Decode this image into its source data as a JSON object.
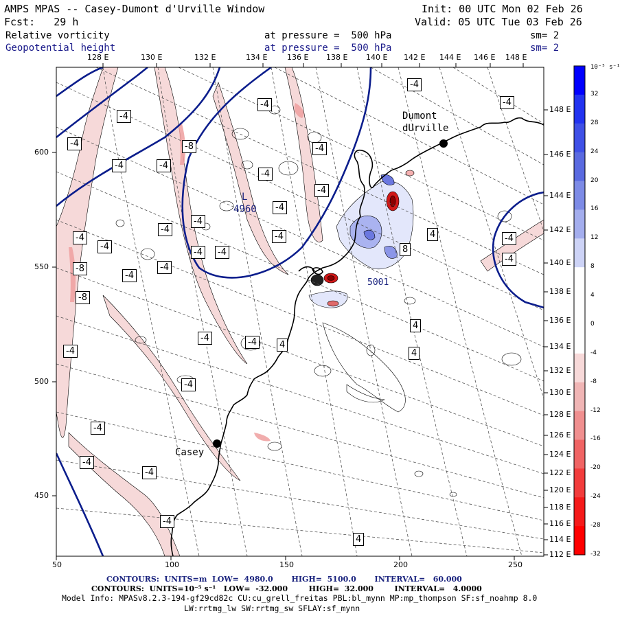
{
  "header": {
    "title": "AMPS MPAS -- Casey-Dumont d'Urville Window",
    "init": "Init: 00 UTC Mon 02 Feb 26",
    "forecast": "Fcst:   29 h",
    "valid": "Valid: 05 UTC Tue 03 Feb 26",
    "field1_name": "Relative vorticity",
    "field1_level": "at pressure =  500 hPa",
    "field1_smooth": "sm= 2",
    "field2_name": "Geopotential height",
    "field2_level": "at pressure =  500 hPa",
    "field2_smooth": "sm= 2"
  },
  "longitude_labels_top": [
    "128 E",
    "130 E",
    "132 E",
    "134 E",
    "136 E",
    "138 E",
    "140 E",
    "142 E",
    "144 E",
    "146 E",
    "148 E"
  ],
  "longitude_labels_right": [
    "148 E",
    "146 E",
    "144 E",
    "142 E",
    "140 E",
    "138 E",
    "136 E",
    "134 E",
    "132 E",
    "130 E",
    "128 E",
    "126 E",
    "124 E",
    "122 E",
    "120 E",
    "118 E",
    "116 E",
    "114 E",
    "112 E"
  ],
  "grid_x_ticks": [
    "50",
    "100",
    "150",
    "200",
    "250"
  ],
  "grid_y_ticks": [
    "600",
    "550",
    "500",
    "450"
  ],
  "stations": [
    {
      "name": "Dumont\ndUrville"
    },
    {
      "name": "Casey"
    }
  ],
  "height_labels": [
    "L",
    "4960",
    "5001"
  ],
  "contour_labels": [
    "-4",
    "-8",
    "4",
    "8"
  ],
  "colorbar": {
    "unit": "10⁻⁵ s⁻¹",
    "labels": [
      "32",
      "28",
      "24",
      "20",
      "16",
      "12",
      "8",
      "4",
      "0",
      "-4",
      "-8",
      "-12",
      "-16",
      "-20",
      "-24",
      "-28",
      "-32"
    ],
    "colors": [
      "#0000ff",
      "#2233f0",
      "#3f50e6",
      "#5a6ae0",
      "#7d8be6",
      "#a4aeee",
      "#cdd3f6",
      "#ffffff",
      "#ffffff",
      "#ffffff",
      "#f7d9d9",
      "#f0b5b5",
      "#f08f8f",
      "#f06464",
      "#f23c3c",
      "#f51a1a",
      "#ff0000"
    ]
  },
  "footer": {
    "line1": "CONTOURS:  UNITS=m  LOW=  4980.0       HIGH=  5100.0       INTERVAL=   60.000",
    "line2": "CONTOURS:  UNITS=10⁻⁵ s⁻¹   LOW=  -32.000        HIGH=  32.000        INTERVAL=   4.0000",
    "line3": "Model Info: MPASv8.2.3-194-gf29cd82c CU:cu_grell_freitas PBL:bl_mynn MP:mp_thompson SF:sf_noahmp 8.0",
    "line4": "LW:rrtmg_lw SW:rrtmg_sw SFLAY:sf_mynn"
  },
  "colors": {
    "geopotential_contour": "#0b1d8c",
    "vort_negative_fill": "#f3d2d2",
    "vort_positive_fill": "#8c96e8",
    "coastline": "#000000",
    "grid": "#444444"
  }
}
